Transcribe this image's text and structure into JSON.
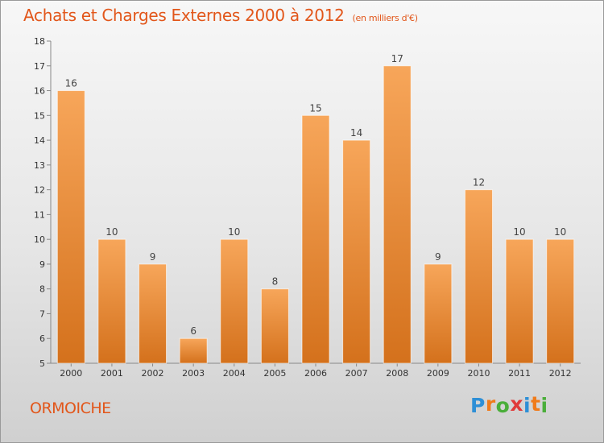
{
  "title": "Achats et Charges Externes 2000 à 2012",
  "unit": "(en milliers d'€)",
  "place": "ORMOICHE",
  "brand": {
    "letters": [
      "P",
      "r",
      "o",
      "x",
      "i",
      "t",
      "i"
    ],
    "colors": [
      "#2e8fd6",
      "#f07b1a",
      "#4aae3a",
      "#e03a3a",
      "#2e8fd6",
      "#f07b1a",
      "#4aae3a"
    ]
  },
  "colors": {
    "accent": "#e2561a",
    "bar_light": "#f7a65a",
    "bar_dark": "#d4711c"
  },
  "chart_data": {
    "type": "bar",
    "title": "Achats et Charges Externes 2000 à 2012",
    "categories": [
      "2000",
      "2001",
      "2002",
      "2003",
      "2004",
      "2005",
      "2006",
      "2007",
      "2008",
      "2009",
      "2010",
      "2011",
      "2012"
    ],
    "values": [
      16,
      10,
      9,
      6,
      10,
      8,
      15,
      14,
      17,
      9,
      12,
      10,
      10
    ],
    "xlabel": "",
    "ylabel": "",
    "ylim": [
      5,
      18
    ],
    "yticks": [
      "5",
      "6",
      "7",
      "8",
      "9",
      "10",
      "11",
      "12",
      "13",
      "14",
      "15",
      "16",
      "17",
      "18"
    ],
    "grid": false,
    "legend": "none"
  }
}
